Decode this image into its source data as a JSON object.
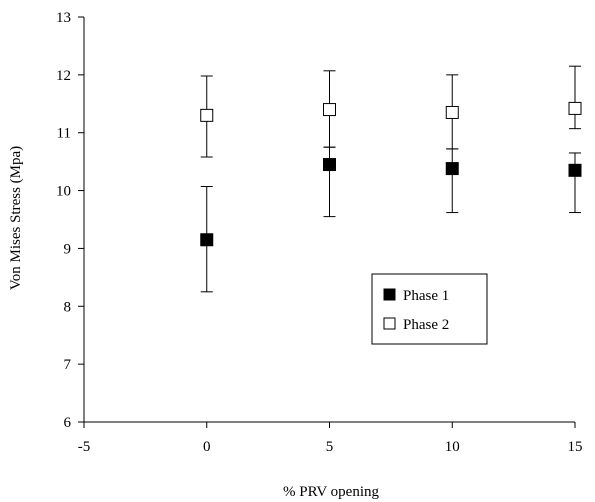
{
  "chart_data": {
    "type": "scatter",
    "title": "",
    "xlabel": "% PRV opening",
    "ylabel": "Von Mises Stress (Mpa)",
    "xlim": [
      -5,
      15
    ],
    "ylim": [
      6,
      13
    ],
    "xticks": [
      -5,
      0,
      5,
      10,
      15
    ],
    "yticks": [
      6,
      7,
      8,
      9,
      10,
      11,
      12,
      13
    ],
    "grid": false,
    "legend": "center-right",
    "series": [
      {
        "name": "Phase 1",
        "marker": "filled-square",
        "color": "#000000",
        "x": [
          0,
          5,
          10,
          15
        ],
        "y": [
          9.15,
          10.45,
          10.38,
          10.35
        ],
        "err_low": [
          8.25,
          9.55,
          9.62,
          9.62
        ],
        "err_high": [
          10.07,
          10.75,
          10.72,
          10.65
        ]
      },
      {
        "name": "Phase 2",
        "marker": "open-square",
        "color": "#000000",
        "x": [
          0,
          5,
          10,
          15
        ],
        "y": [
          11.3,
          11.4,
          11.35,
          11.42
        ],
        "err_low": [
          10.58,
          10.75,
          10.72,
          11.07
        ],
        "err_high": [
          11.98,
          12.07,
          12.0,
          12.15
        ]
      }
    ]
  }
}
